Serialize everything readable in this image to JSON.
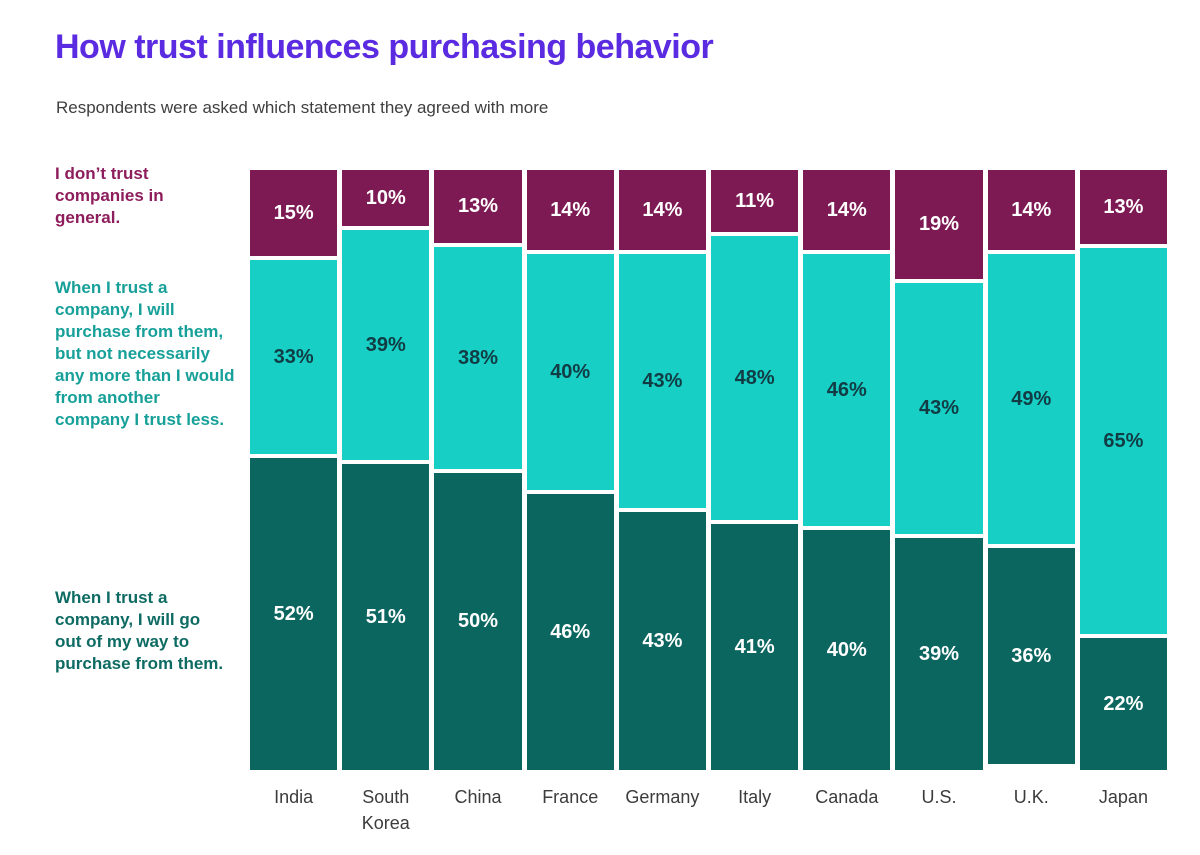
{
  "header": {
    "title": "How trust influences purchasing behavior",
    "subtitle": "Respondents were asked which statement they agreed with more"
  },
  "chart_data": {
    "type": "bar",
    "stacked": true,
    "orientation": "vertical",
    "value_suffix": "%",
    "ylim": [
      0,
      100
    ],
    "grid": false,
    "legend_position": "left",
    "categories": [
      "India",
      "South Korea",
      "China",
      "France",
      "Germany",
      "Italy",
      "Canada",
      "U.S.",
      "U.K.",
      "Japan"
    ],
    "series": [
      {
        "name": "I don’t trust companies in general.",
        "values": [
          15,
          10,
          13,
          14,
          14,
          11,
          14,
          19,
          14,
          13
        ],
        "color": "#7D1A53",
        "value_text_color": "#FFFFFF",
        "legend_text_color": "#8E1D5C"
      },
      {
        "name": "When I trust a company, I will purchase from them, but not necessarily any more than I would from another company I trust less.",
        "values": [
          33,
          39,
          38,
          40,
          43,
          48,
          46,
          43,
          49,
          65
        ],
        "color": "#17CFC5",
        "value_text_color": "#113C44",
        "legend_text_color": "#17A099"
      },
      {
        "name": "When I trust a company, I will go out of my way to purchase from them.",
        "values": [
          52,
          51,
          50,
          46,
          43,
          41,
          40,
          39,
          36,
          22
        ],
        "color": "#0C6660",
        "value_text_color": "#FFFFFF",
        "legend_text_color": "#0E6B63"
      }
    ]
  },
  "colors": {
    "title": "#5A2BE0",
    "subtitle": "#3F3F3F",
    "axis_labels": "#3C3C3C",
    "background": "#FFFFFF"
  }
}
